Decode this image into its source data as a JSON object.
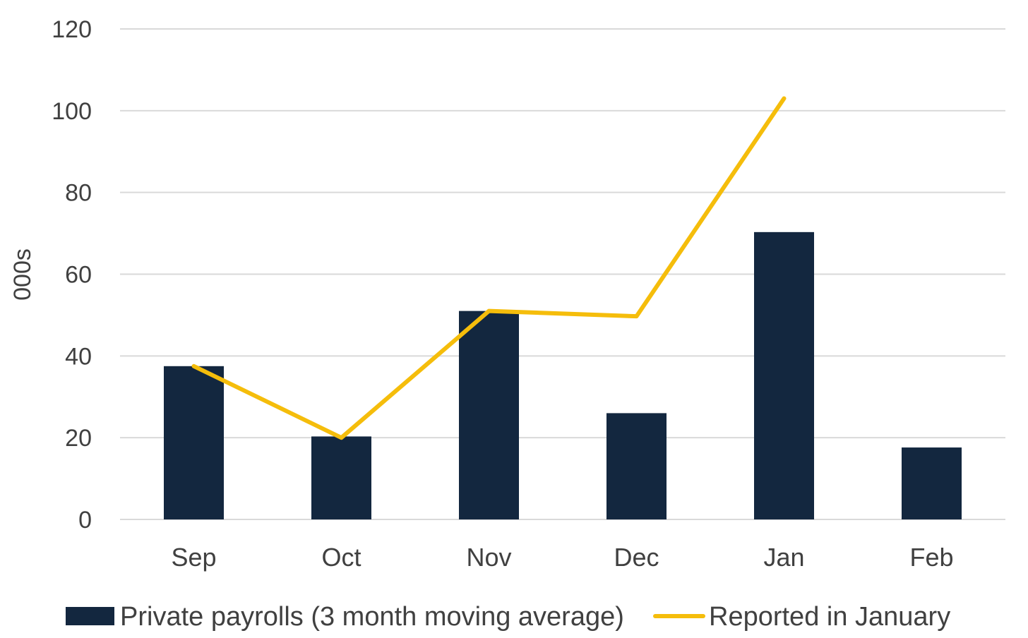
{
  "chart_data": {
    "type": "bar",
    "title": "",
    "xlabel": "",
    "ylabel": "000s",
    "ylim": [
      0,
      120
    ],
    "yticks": [
      0,
      20,
      40,
      60,
      80,
      100,
      120
    ],
    "grid": true,
    "legend_position": "bottom",
    "categories": [
      "Sep",
      "Oct",
      "Nov",
      "Dec",
      "Jan",
      "Feb"
    ],
    "series": [
      {
        "name": "Private payrolls (3 month moving average)",
        "type": "bar",
        "color": "#13273f",
        "values": [
          37.5,
          20.3,
          51.0,
          26.0,
          70.3,
          17.6
        ]
      },
      {
        "name": "Reported in January",
        "type": "line",
        "color": "#f5bd0b",
        "values": [
          37.5,
          20.0,
          51.0,
          49.7,
          103.0,
          null
        ]
      }
    ]
  }
}
